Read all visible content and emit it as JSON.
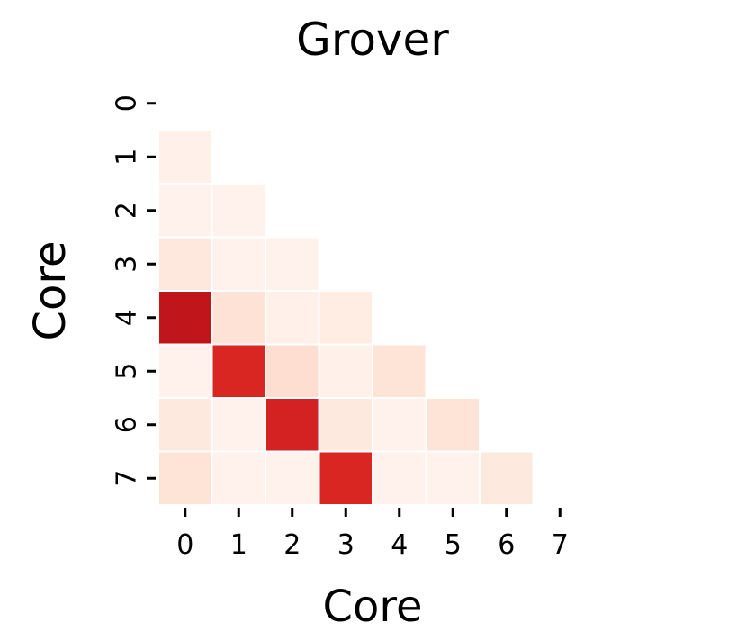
{
  "chart_data": {
    "type": "heatmap",
    "title": "Grover",
    "xlabel": "Core",
    "ylabel": "Core",
    "x_categories": [
      "0",
      "1",
      "2",
      "3",
      "4",
      "5",
      "6",
      "7"
    ],
    "y_categories": [
      "0",
      "1",
      "2",
      "3",
      "4",
      "5",
      "6",
      "7"
    ],
    "mask": "upper-triangle-including-diagonal",
    "value_range": [
      0,
      1
    ],
    "colormap": [
      "#fff5f0",
      "#fee0d2",
      "#fcbba1",
      "#fc9272",
      "#fb6a4a",
      "#ef3b2c",
      "#cb181d",
      "#a50f15"
    ],
    "colorbar": false,
    "grid": false,
    "values": [
      [
        null,
        null,
        null,
        null,
        null,
        null,
        null,
        null
      ],
      [
        0.03,
        null,
        null,
        null,
        null,
        null,
        null,
        null
      ],
      [
        0.02,
        0.02,
        null,
        null,
        null,
        null,
        null,
        null
      ],
      [
        0.09,
        0.02,
        0.02,
        null,
        null,
        null,
        null,
        null
      ],
      [
        0.9,
        0.13,
        0.03,
        0.06,
        null,
        null,
        null,
        null
      ],
      [
        0.02,
        0.8,
        0.15,
        0.03,
        0.12,
        null,
        null,
        null
      ],
      [
        0.08,
        0.02,
        0.82,
        0.08,
        0.02,
        0.12,
        null,
        null
      ],
      [
        0.12,
        0.02,
        0.02,
        0.8,
        0.02,
        0.02,
        0.08,
        null
      ]
    ]
  }
}
